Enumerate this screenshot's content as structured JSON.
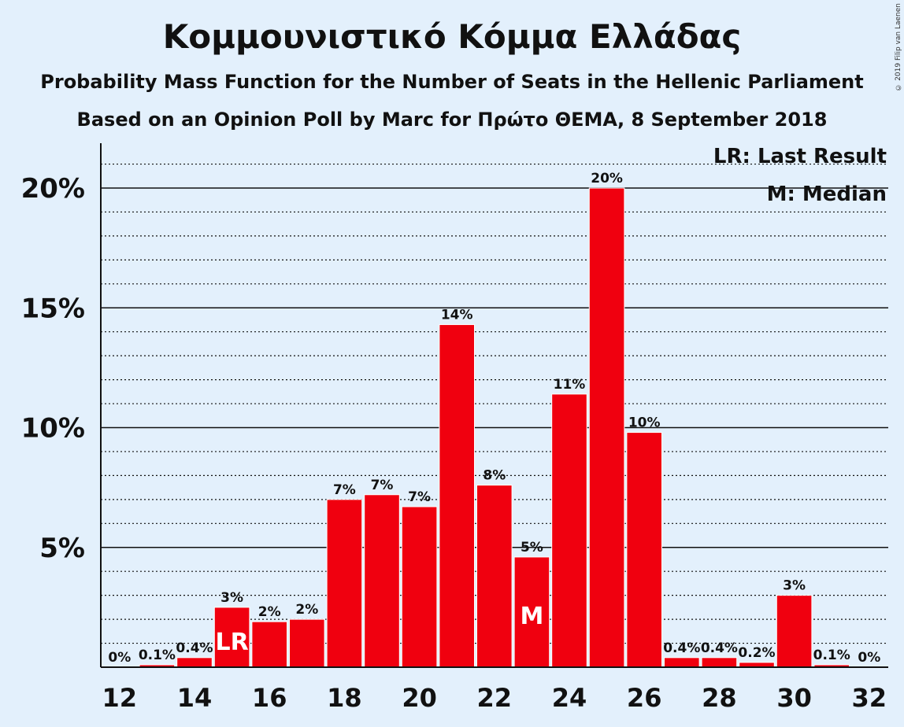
{
  "header": {
    "title": "Κομμουνιστικό Κόμμα Ελλάδας",
    "subtitle1": "Probability Mass Function for the Number of Seats in the Hellenic Parliament",
    "subtitle2": "Based on an Opinion Poll by Marc for Πρώτο ΘΕΜΑ, 8 September 2018",
    "copyright": "© 2019 Filip van Laenen"
  },
  "legend": {
    "lr": "LR: Last Result",
    "m": "M: Median"
  },
  "chart_data": {
    "type": "bar",
    "categories": [
      12,
      13,
      14,
      15,
      16,
      17,
      18,
      19,
      20,
      21,
      22,
      23,
      24,
      25,
      26,
      27,
      28,
      29,
      30,
      31,
      32
    ],
    "values": [
      0,
      0.1,
      0.4,
      2.5,
      1.9,
      2.0,
      7.0,
      7.2,
      6.7,
      14.3,
      7.6,
      4.6,
      11.4,
      20.0,
      9.8,
      0.4,
      0.4,
      0.2,
      3.0,
      0.1,
      0
    ],
    "data_labels": [
      "0%",
      "0.1%",
      "0.4%",
      "3%",
      "2%",
      "2%",
      "7%",
      "7%",
      "7%",
      "14%",
      "8%",
      "5%",
      "11%",
      "20%",
      "10%",
      "0.4%",
      "0.4%",
      "0.2%",
      "3%",
      "0.1%",
      "0%"
    ],
    "x_tick_labels": [
      "12",
      "14",
      "16",
      "18",
      "20",
      "22",
      "24",
      "26",
      "28",
      "30",
      "32"
    ],
    "y_tick_labels": [
      "5%",
      "10%",
      "15%",
      "20%"
    ],
    "y_ticks": [
      5,
      10,
      15,
      20
    ],
    "ylim": [
      0,
      21.5
    ],
    "last_result_seat": 15,
    "last_result_marker": "LR",
    "median_seat": 23,
    "median_marker": "M",
    "bar_color": "#f0000f",
    "grid": "major solid, minor dotted",
    "legend_placement": "top-right"
  }
}
